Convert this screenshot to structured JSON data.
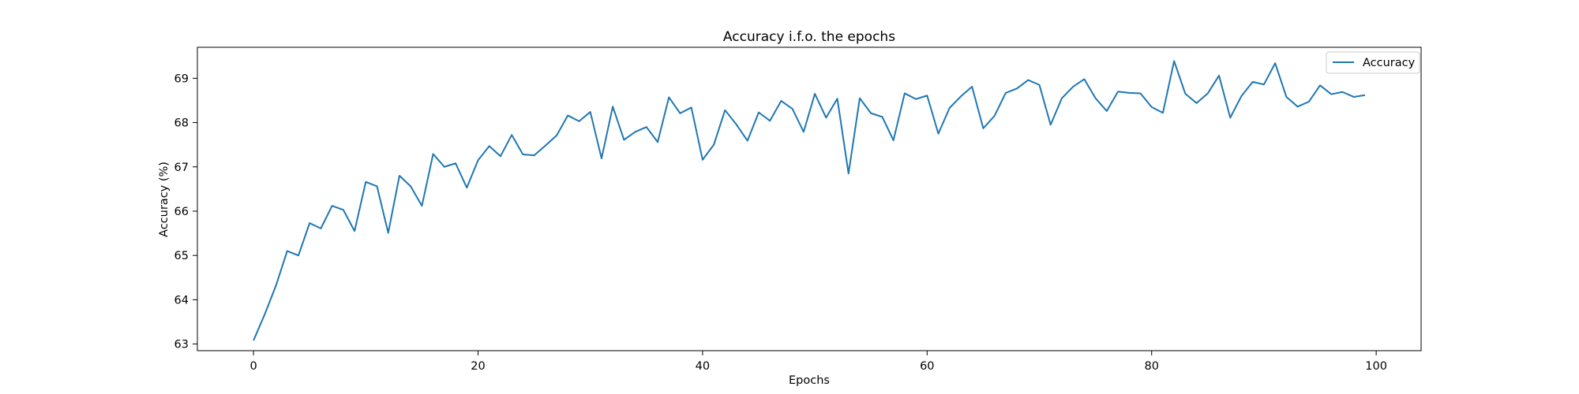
{
  "chart_data": {
    "type": "line",
    "title": "Accuracy i.f.o. the epochs",
    "xlabel": "Epochs",
    "ylabel": "Accuracy (%)",
    "xlim": [
      -5,
      104
    ],
    "ylim": [
      62.85,
      69.7
    ],
    "xticks": [
      0,
      20,
      40,
      60,
      80,
      100
    ],
    "yticks": [
      63,
      64,
      65,
      66,
      67,
      68,
      69
    ],
    "grid": false,
    "legend_position": "top-right",
    "series": [
      {
        "name": "Accuracy",
        "color": "#1f77b4",
        "x": [
          0,
          1,
          2,
          3,
          4,
          5,
          6,
          7,
          8,
          9,
          10,
          11,
          12,
          13,
          14,
          15,
          16,
          17,
          18,
          19,
          20,
          21,
          22,
          23,
          24,
          25,
          26,
          27,
          28,
          29,
          30,
          31,
          32,
          33,
          34,
          35,
          36,
          37,
          38,
          39,
          40,
          41,
          42,
          43,
          44,
          45,
          46,
          47,
          48,
          49,
          50,
          51,
          52,
          53,
          54,
          55,
          56,
          57,
          58,
          59,
          60,
          61,
          62,
          63,
          64,
          65,
          66,
          67,
          68,
          69,
          70,
          71,
          72,
          73,
          74,
          75,
          76,
          77,
          78,
          79,
          80,
          81,
          82,
          83,
          84,
          85,
          86,
          87,
          88,
          89,
          90,
          91,
          92,
          93,
          94,
          95,
          96,
          97,
          98,
          99
        ],
        "y": [
          63.08,
          63.67,
          64.32,
          65.1,
          65.0,
          65.73,
          65.61,
          66.12,
          66.03,
          65.55,
          66.66,
          66.56,
          65.51,
          66.8,
          66.56,
          66.12,
          67.29,
          67.0,
          67.08,
          66.53,
          67.15,
          67.47,
          67.24,
          67.72,
          67.28,
          67.26,
          67.48,
          67.71,
          68.16,
          68.03,
          68.24,
          67.19,
          68.36,
          67.61,
          67.79,
          67.9,
          67.56,
          68.57,
          68.21,
          68.34,
          67.16,
          67.5,
          68.28,
          67.96,
          67.59,
          68.23,
          68.04,
          68.49,
          68.31,
          67.79,
          68.65,
          68.11,
          68.54,
          66.85,
          68.55,
          68.21,
          68.13,
          67.6,
          68.66,
          68.53,
          68.61,
          67.75,
          68.33,
          68.59,
          68.81,
          67.87,
          68.15,
          68.67,
          68.77,
          68.96,
          68.85,
          67.95,
          68.55,
          68.81,
          68.98,
          68.55,
          68.26,
          68.7,
          68.67,
          68.66,
          68.35,
          68.22,
          69.39,
          68.65,
          68.44,
          68.66,
          69.06,
          68.11,
          68.6,
          68.92,
          68.86,
          69.34,
          68.58,
          68.36,
          68.47,
          68.84,
          68.64,
          68.69,
          68.58,
          68.62
        ]
      }
    ]
  }
}
